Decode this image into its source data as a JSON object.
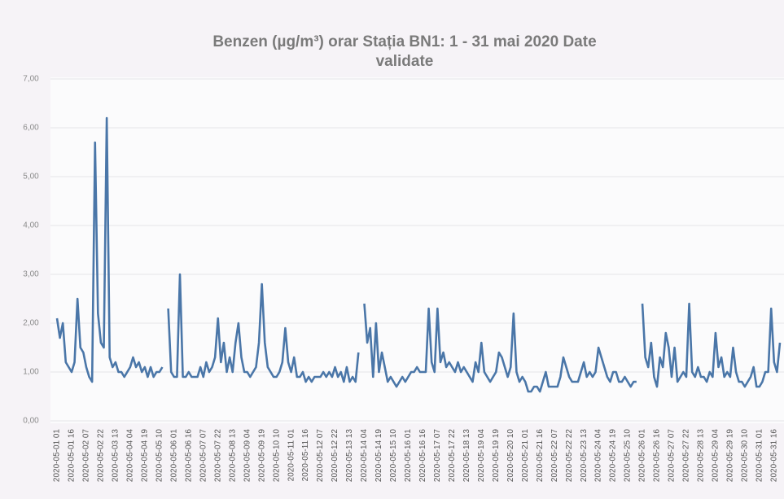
{
  "chart_data": {
    "type": "line",
    "title": "Benzen (µg/m³) orar Stația BN1: 1 - 31 mai 2020 Date validate",
    "categories": [
      "2020-05-01 01",
      null,
      null,
      null,
      null,
      "2020-05-01 16",
      null,
      null,
      null,
      null,
      "2020-05-02 07",
      null,
      null,
      null,
      null,
      "2020-05-02 22",
      null,
      null,
      null,
      null,
      "2020-05-03 13",
      null,
      null,
      null,
      null,
      "2020-05-04 04",
      null,
      null,
      null,
      null,
      "2020-05-04 19",
      null,
      null,
      null,
      null,
      "2020-05-05 10",
      null,
      null,
      null,
      null,
      "2020-05-06 01",
      null,
      null,
      null,
      null,
      "2020-05-06 16",
      null,
      null,
      null,
      null,
      "2020-05-07 07",
      null,
      null,
      null,
      null,
      "2020-05-07 22",
      null,
      null,
      null,
      null,
      "2020-05-08 13",
      null,
      null,
      null,
      null,
      "2020-05-09 04",
      null,
      null,
      null,
      null,
      "2020-05-09 19",
      null,
      null,
      null,
      null,
      "2020-05-10 10",
      null,
      null,
      null,
      null,
      "2020-05-11 01",
      null,
      null,
      null,
      null,
      "2020-05-11 16",
      null,
      null,
      null,
      null,
      "2020-05-12 07",
      null,
      null,
      null,
      null,
      "2020-05-12 22",
      null,
      null,
      null,
      null,
      "2020-05-13 13",
      null,
      null,
      null,
      null,
      "2020-05-14 04",
      null,
      null,
      null,
      null,
      "2020-05-14 19",
      null,
      null,
      null,
      null,
      "2020-05-15 10",
      null,
      null,
      null,
      null,
      "2020-05-16 01",
      null,
      null,
      null,
      null,
      "2020-05-16 16",
      null,
      null,
      null,
      null,
      "2020-05-17 07",
      null,
      null,
      null,
      null,
      "2020-05-17 22",
      null,
      null,
      null,
      null,
      "2020-05-18 13",
      null,
      null,
      null,
      null,
      "2020-05-19 04",
      null,
      null,
      null,
      null,
      "2020-05-19 19",
      null,
      null,
      null,
      null,
      "2020-05-20 10",
      null,
      null,
      null,
      null,
      "2020-05-21 01",
      null,
      null,
      null,
      null,
      "2020-05-21 16",
      null,
      null,
      null,
      null,
      "2020-05-22 07",
      null,
      null,
      null,
      null,
      "2020-05-22 22",
      null,
      null,
      null,
      null,
      "2020-05-23 13",
      null,
      null,
      null,
      null,
      "2020-05-24 04",
      null,
      null,
      null,
      null,
      "2020-05-24 19",
      null,
      null,
      null,
      null,
      "2020-05-25 10",
      null,
      null,
      null,
      null,
      "2020-05-26 01",
      null,
      null,
      null,
      null,
      "2020-05-26 16",
      null,
      null,
      null,
      null,
      "2020-05-27 07",
      null,
      null,
      null,
      null,
      "2020-05-27 22",
      null,
      null,
      null,
      null,
      "2020-05-28 13",
      null,
      null,
      null,
      null,
      "2020-05-29 04",
      null,
      null,
      null,
      null,
      "2020-05-29 19",
      null,
      null,
      null,
      null,
      "2020-05-30 10",
      null,
      null,
      null,
      null,
      "2020-05-31 01",
      null,
      null,
      null,
      null,
      "2020-05-31 16",
      null,
      null
    ],
    "series": [
      {
        "name": "Benzen",
        "color": "#4a76a8",
        "values": [
          2.1,
          1.7,
          2.0,
          1.2,
          1.1,
          1.0,
          1.2,
          2.5,
          1.5,
          1.4,
          1.1,
          0.9,
          0.8,
          5.7,
          2.2,
          1.6,
          1.5,
          6.2,
          1.3,
          1.1,
          1.2,
          1.0,
          1.0,
          0.9,
          1.0,
          1.1,
          1.3,
          1.1,
          1.2,
          1.0,
          1.1,
          0.9,
          1.1,
          0.9,
          1.0,
          1.0,
          1.1,
          null,
          2.3,
          1.0,
          0.9,
          0.9,
          3.0,
          0.9,
          0.9,
          1.0,
          0.9,
          0.9,
          0.9,
          1.1,
          0.9,
          1.2,
          1.0,
          1.1,
          1.3,
          2.1,
          1.2,
          1.6,
          1.0,
          1.3,
          1.0,
          1.6,
          2.0,
          1.3,
          1.0,
          1.0,
          0.9,
          1.0,
          1.1,
          1.6,
          2.8,
          1.6,
          1.1,
          1.0,
          0.9,
          0.9,
          1.0,
          1.2,
          1.9,
          1.2,
          1.0,
          1.3,
          0.9,
          0.9,
          1.0,
          0.8,
          0.9,
          0.8,
          0.9,
          0.9,
          0.9,
          1.0,
          0.9,
          1.0,
          0.9,
          1.1,
          0.9,
          1.0,
          0.8,
          1.1,
          0.8,
          0.9,
          0.8,
          1.4,
          null,
          2.4,
          1.6,
          1.9,
          0.9,
          2.0,
          1.0,
          1.4,
          1.1,
          0.8,
          0.9,
          0.8,
          0.7,
          0.8,
          0.9,
          0.8,
          0.9,
          1.0,
          1.0,
          1.1,
          1.0,
          1.0,
          1.0,
          2.3,
          1.2,
          1.0,
          2.3,
          1.2,
          1.4,
          1.1,
          1.2,
          1.1,
          1.0,
          1.2,
          1.0,
          1.1,
          1.0,
          0.9,
          0.8,
          1.2,
          1.0,
          1.6,
          1.0,
          0.9,
          0.8,
          0.9,
          1.0,
          1.4,
          1.3,
          1.1,
          0.9,
          1.1,
          2.2,
          1.0,
          0.8,
          0.9,
          0.8,
          0.6,
          0.6,
          0.7,
          0.7,
          0.6,
          0.8,
          1.0,
          0.7,
          0.7,
          0.7,
          0.7,
          0.9,
          1.3,
          1.1,
          0.9,
          0.8,
          0.8,
          0.8,
          1.0,
          1.2,
          0.9,
          1.0,
          0.9,
          1.0,
          1.5,
          1.3,
          1.1,
          0.9,
          0.8,
          1.0,
          1.0,
          0.8,
          0.8,
          0.9,
          0.8,
          0.7,
          0.8,
          0.8,
          null,
          2.4,
          1.3,
          1.1,
          1.6,
          0.9,
          0.7,
          1.3,
          1.1,
          1.8,
          1.5,
          0.9,
          1.5,
          0.8,
          0.9,
          1.0,
          0.9,
          2.4,
          1.0,
          0.9,
          1.1,
          0.9,
          0.9,
          0.8,
          1.0,
          0.9,
          1.8,
          1.1,
          1.3,
          0.9,
          1.0,
          0.9,
          1.5,
          1.0,
          0.8,
          0.8,
          0.7,
          0.8,
          0.9,
          1.1,
          0.7,
          0.7,
          0.8,
          1.0,
          1.0,
          2.3,
          1.2,
          1.0,
          1.6
        ]
      }
    ],
    "ylim": [
      0,
      7
    ],
    "yticks": [
      {
        "value": 0,
        "label": "0,00"
      },
      {
        "value": 1,
        "label": "1,00"
      },
      {
        "value": 2,
        "label": "2,00"
      },
      {
        "value": 3,
        "label": "3,00"
      },
      {
        "value": 4,
        "label": "4,00"
      },
      {
        "value": 5,
        "label": "5,00"
      },
      {
        "value": 6,
        "label": "6,00"
      },
      {
        "value": 7,
        "label": "7,00"
      }
    ],
    "grid": true
  }
}
